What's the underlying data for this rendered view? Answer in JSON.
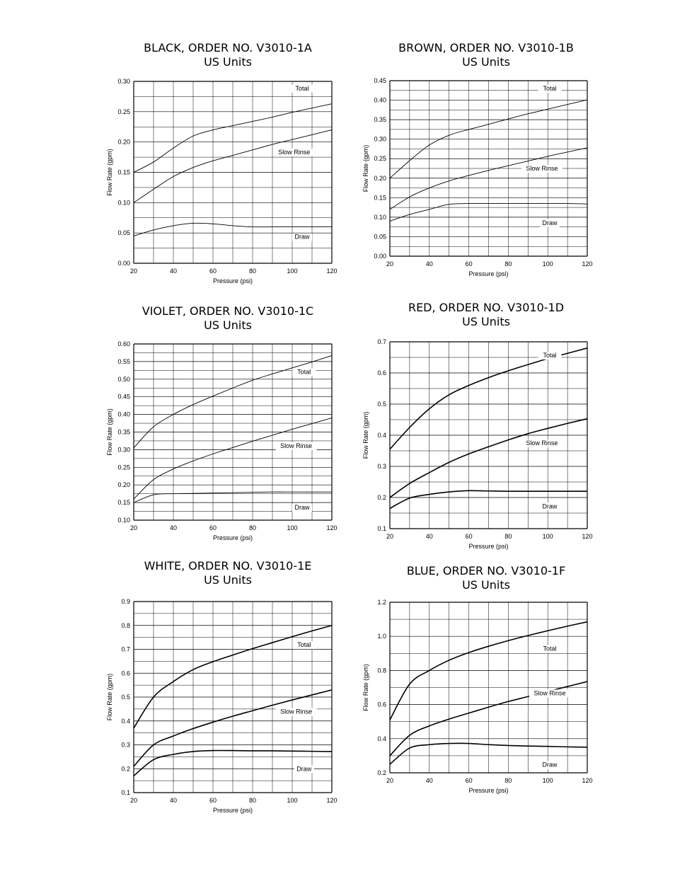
{
  "chart_data": [
    {
      "type": "line",
      "title": "BLACK, ORDER NO. V3010-1A",
      "subtitle": "US Units",
      "xlabel": "Pressure (psi)",
      "ylabel": "Flow Rate (gpm)",
      "xlim": [
        20,
        120
      ],
      "ylim": [
        0,
        0.3
      ],
      "xticks": [
        "20",
        "40",
        "60",
        "80",
        "100",
        "120"
      ],
      "yticks": [
        "0.00",
        "0.05",
        "0.10",
        "0.15",
        "0.20",
        "0.25",
        "0.30"
      ],
      "grid": true,
      "series": [
        {
          "name": "Total",
          "x": [
            20,
            30,
            40,
            50,
            60,
            70,
            80,
            90,
            100,
            110,
            120
          ],
          "y": [
            0.15,
            0.167,
            0.19,
            0.21,
            0.22,
            0.227,
            0.234,
            0.241,
            0.249,
            0.256,
            0.263
          ]
        },
        {
          "name": "Slow Rinse",
          "x": [
            20,
            30,
            40,
            50,
            60,
            70,
            80,
            90,
            100,
            110,
            120
          ],
          "y": [
            0.1,
            0.122,
            0.143,
            0.158,
            0.169,
            0.178,
            0.187,
            0.196,
            0.204,
            0.212,
            0.22
          ]
        },
        {
          "name": "Draw",
          "x": [
            20,
            30,
            40,
            50,
            60,
            70,
            80,
            90,
            100,
            110,
            120
          ],
          "y": [
            0.045,
            0.055,
            0.062,
            0.066,
            0.065,
            0.062,
            0.06,
            0.06,
            0.06,
            0.06,
            0.06
          ]
        }
      ],
      "labels": [
        {
          "text": "Total",
          "x": 105,
          "y": 0.285
        },
        {
          "text": "Slow Rinse",
          "x": 101,
          "y": 0.18
        },
        {
          "text": "Draw",
          "x": 105,
          "y": 0.04
        }
      ]
    },
    {
      "type": "line",
      "title": "BROWN, ORDER NO. V3010-1B",
      "subtitle": "US Units",
      "xlabel": "Pressure (psi)",
      "ylabel": "Flow Rate (gpm)",
      "xlim": [
        20,
        120
      ],
      "ylim": [
        0,
        0.45
      ],
      "xticks": [
        "20",
        "40",
        "60",
        "80",
        "100",
        "120"
      ],
      "yticks": [
        "0.00",
        "0.05",
        "0.10",
        "0.15",
        "0.20",
        "0.25",
        "0.30",
        "0.35",
        "0.40",
        "0.45"
      ],
      "grid": true,
      "series": [
        {
          "name": "Total",
          "x": [
            20,
            30,
            40,
            50,
            60,
            70,
            80,
            90,
            100,
            110,
            120
          ],
          "y": [
            0.2,
            0.245,
            0.285,
            0.31,
            0.325,
            0.338,
            0.352,
            0.365,
            0.377,
            0.389,
            0.401
          ]
        },
        {
          "name": "Slow Rinse",
          "x": [
            20,
            30,
            40,
            50,
            60,
            70,
            80,
            90,
            100,
            110,
            120
          ],
          "y": [
            0.12,
            0.152,
            0.175,
            0.193,
            0.207,
            0.22,
            0.232,
            0.244,
            0.256,
            0.267,
            0.278
          ]
        },
        {
          "name": "Draw",
          "x": [
            20,
            30,
            40,
            50,
            60,
            70,
            80,
            90,
            100,
            110,
            120
          ],
          "y": [
            0.09,
            0.107,
            0.12,
            0.133,
            0.135,
            0.135,
            0.135,
            0.135,
            0.135,
            0.135,
            0.134
          ]
        }
      ],
      "labels": [
        {
          "text": "Total",
          "x": 101,
          "y": 0.425
        },
        {
          "text": "Slow Rinse",
          "x": 97,
          "y": 0.22
        },
        {
          "text": "Draw",
          "x": 101,
          "y": 0.08
        }
      ]
    },
    {
      "type": "line",
      "title": "VIOLET, ORDER NO. V3010-1C",
      "subtitle": "US Units",
      "xlabel": "Pressure (psi)",
      "ylabel": "Flow Rate (gpm)",
      "xlim": [
        20,
        120
      ],
      "ylim": [
        0.1,
        0.6
      ],
      "xticks": [
        "20",
        "40",
        "60",
        "80",
        "100",
        "120"
      ],
      "yticks": [
        "0.10",
        "0.15",
        "0.20",
        "0.25",
        "0.30",
        "0.35",
        "0.40",
        "0.45",
        "0.50",
        "0.55",
        "0.60"
      ],
      "grid": true,
      "series": [
        {
          "name": "Total",
          "x": [
            20,
            30,
            40,
            50,
            60,
            70,
            80,
            90,
            100,
            110,
            120
          ],
          "y": [
            0.305,
            0.365,
            0.4,
            0.428,
            0.452,
            0.475,
            0.497,
            0.515,
            0.532,
            0.549,
            0.567
          ]
        },
        {
          "name": "Slow Rinse",
          "x": [
            20,
            30,
            40,
            50,
            60,
            70,
            80,
            90,
            100,
            110,
            120
          ],
          "y": [
            0.16,
            0.215,
            0.245,
            0.268,
            0.288,
            0.306,
            0.324,
            0.341,
            0.358,
            0.374,
            0.39
          ]
        },
        {
          "name": "Draw",
          "x": [
            20,
            30,
            40,
            50,
            60,
            70,
            80,
            90,
            100,
            110,
            120
          ],
          "y": [
            0.15,
            0.172,
            0.175,
            0.176,
            0.177,
            0.178,
            0.179,
            0.18,
            0.18,
            0.18,
            0.18
          ]
        }
      ],
      "labels": [
        {
          "text": "Total",
          "x": 106,
          "y": 0.515
        },
        {
          "text": "Slow Rinse",
          "x": 102,
          "y": 0.305
        },
        {
          "text": "Draw",
          "x": 105,
          "y": 0.13
        }
      ]
    },
    {
      "type": "line",
      "title": "RED, ORDER NO. V3010-1D",
      "subtitle": "US Units",
      "xlabel": "Pressure (psi)",
      "ylabel": "Flow Rate (gpm)",
      "xlim": [
        20,
        120
      ],
      "ylim": [
        0.1,
        0.7
      ],
      "xticks": [
        "20",
        "40",
        "60",
        "80",
        "100",
        "120"
      ],
      "yticks": [
        "0.1",
        "0.2",
        "0.3",
        "0.4",
        "0.5",
        "0.6",
        "0.7"
      ],
      "grid": true,
      "series": [
        {
          "name": "Total",
          "x": [
            20,
            30,
            40,
            50,
            60,
            70,
            80,
            90,
            100,
            110,
            120
          ],
          "y": [
            0.355,
            0.425,
            0.485,
            0.53,
            0.56,
            0.585,
            0.607,
            0.627,
            0.646,
            0.663,
            0.68
          ]
        },
        {
          "name": "Slow Rinse",
          "x": [
            20,
            30,
            40,
            50,
            60,
            70,
            80,
            90,
            100,
            110,
            120
          ],
          "y": [
            0.2,
            0.245,
            0.28,
            0.313,
            0.34,
            0.363,
            0.385,
            0.405,
            0.422,
            0.438,
            0.453
          ]
        },
        {
          "name": "Draw",
          "x": [
            20,
            30,
            40,
            50,
            60,
            70,
            80,
            90,
            100,
            110,
            120
          ],
          "y": [
            0.165,
            0.198,
            0.21,
            0.218,
            0.222,
            0.221,
            0.22,
            0.22,
            0.22,
            0.22,
            0.22
          ]
        }
      ],
      "labels": [
        {
          "text": "Total",
          "x": 101,
          "y": 0.65
        },
        {
          "text": "Slow Rinse",
          "x": 97,
          "y": 0.368
        },
        {
          "text": "Draw",
          "x": 101,
          "y": 0.165
        }
      ]
    },
    {
      "type": "line",
      "title": "WHITE, ORDER NO. V3010-1E",
      "subtitle": "US Units",
      "xlabel": "Pressure (psi)",
      "ylabel": "Flow Rate (gpm)",
      "xlim": [
        20,
        120
      ],
      "ylim": [
        0.1,
        0.9
      ],
      "xticks": [
        "20",
        "40",
        "60",
        "80",
        "100",
        "120"
      ],
      "yticks": [
        "0.1",
        "0.2",
        "0.3",
        "0.4",
        "0.5",
        "0.6",
        "0.7",
        "0.8",
        "0.9"
      ],
      "grid": true,
      "series": [
        {
          "name": "Total",
          "x": [
            20,
            30,
            40,
            50,
            60,
            70,
            80,
            90,
            100,
            110,
            120
          ],
          "y": [
            0.37,
            0.5,
            0.565,
            0.615,
            0.648,
            0.676,
            0.703,
            0.728,
            0.753,
            0.777,
            0.8
          ]
        },
        {
          "name": "Slow Rinse",
          "x": [
            20,
            30,
            40,
            50,
            60,
            70,
            80,
            90,
            100,
            110,
            120
          ],
          "y": [
            0.21,
            0.3,
            0.337,
            0.368,
            0.395,
            0.42,
            0.443,
            0.466,
            0.488,
            0.509,
            0.53
          ]
        },
        {
          "name": "Draw",
          "x": [
            20,
            30,
            40,
            50,
            60,
            70,
            80,
            90,
            100,
            110,
            120
          ],
          "y": [
            0.17,
            0.238,
            0.26,
            0.272,
            0.276,
            0.276,
            0.275,
            0.275,
            0.274,
            0.273,
            0.272
          ]
        }
      ],
      "labels": [
        {
          "text": "Total",
          "x": 106,
          "y": 0.71
        },
        {
          "text": "Slow Rinse",
          "x": 102,
          "y": 0.43
        },
        {
          "text": "Draw",
          "x": 106,
          "y": 0.19
        }
      ]
    },
    {
      "type": "line",
      "title": "BLUE, ORDER NO. V3010-1F",
      "subtitle": "US Units",
      "xlabel": "Pressure (psi)",
      "ylabel": "Flow Rate (gpm)",
      "xlim": [
        20,
        120
      ],
      "ylim": [
        0.2,
        1.2
      ],
      "xticks": [
        "20",
        "40",
        "60",
        "80",
        "100",
        "120"
      ],
      "yticks": [
        "0.2",
        "0.4",
        "0.6",
        "0.8",
        "1.0",
        "1.2"
      ],
      "grid": true,
      "series": [
        {
          "name": "Total",
          "x": [
            20,
            30,
            40,
            50,
            60,
            70,
            80,
            90,
            100,
            110,
            120
          ],
          "y": [
            0.51,
            0.72,
            0.8,
            0.86,
            0.905,
            0.942,
            0.975,
            1.005,
            1.033,
            1.06,
            1.085
          ]
        },
        {
          "name": "Slow Rinse",
          "x": [
            20,
            30,
            40,
            50,
            60,
            70,
            80,
            90,
            100,
            110,
            120
          ],
          "y": [
            0.3,
            0.42,
            0.475,
            0.515,
            0.55,
            0.585,
            0.618,
            0.647,
            0.677,
            0.706,
            0.735
          ]
        },
        {
          "name": "Draw",
          "x": [
            20,
            30,
            40,
            50,
            60,
            70,
            80,
            90,
            100,
            110,
            120
          ],
          "y": [
            0.25,
            0.345,
            0.365,
            0.372,
            0.372,
            0.365,
            0.36,
            0.357,
            0.355,
            0.352,
            0.35
          ]
        }
      ],
      "labels": [
        {
          "text": "Total",
          "x": 101,
          "y": 0.915
        },
        {
          "text": "Slow Rinse",
          "x": 101,
          "y": 0.655
        },
        {
          "text": "Draw",
          "x": 101,
          "y": 0.235
        }
      ]
    }
  ]
}
